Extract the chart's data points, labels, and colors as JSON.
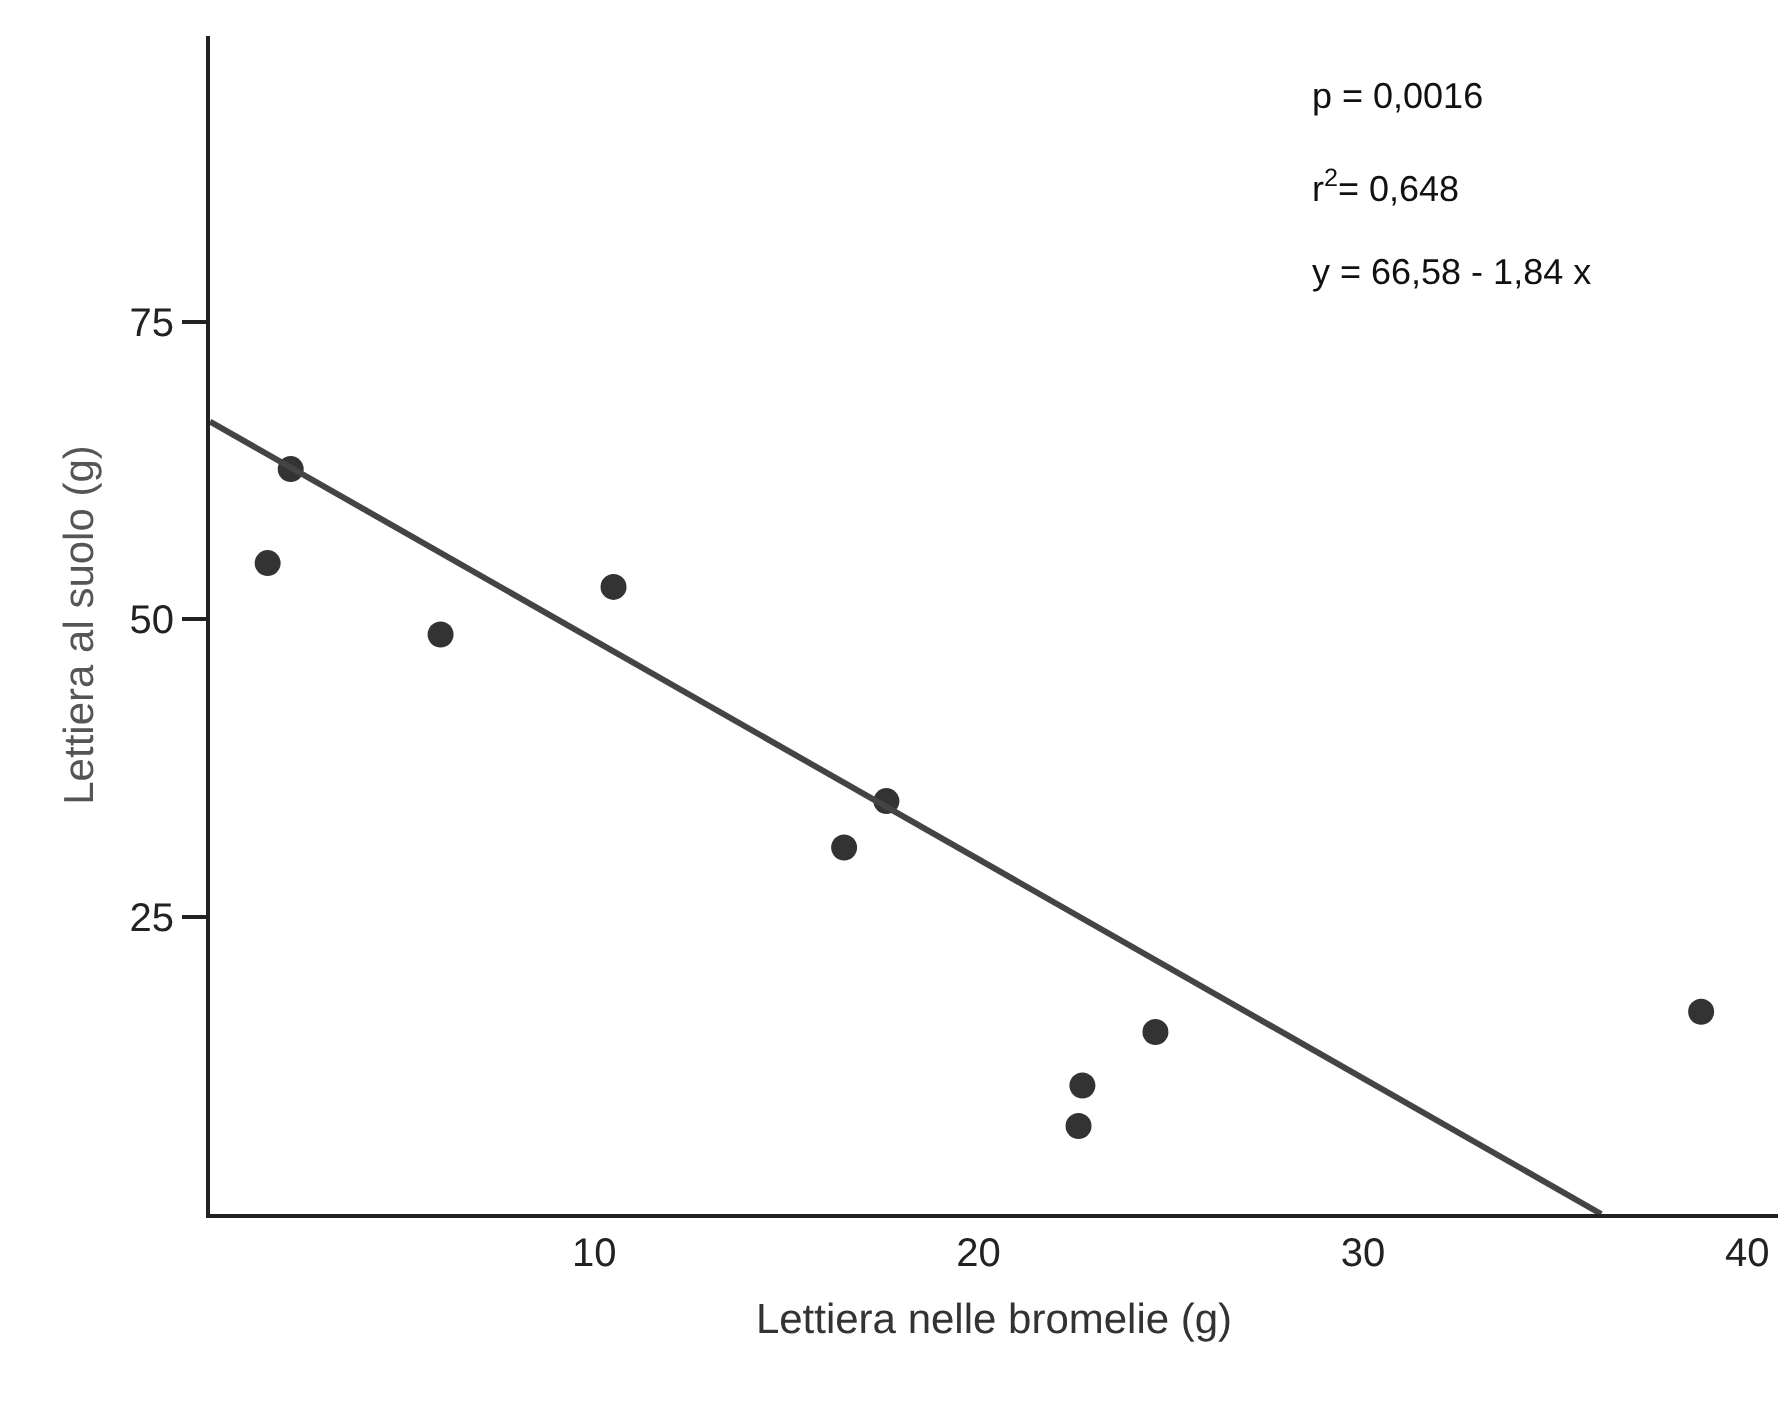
{
  "chart_data": {
    "type": "scatter",
    "xlabel": "Lettiera nelle bromelie (g)",
    "ylabel": "Lettiera al suolo (g)",
    "xlim": [
      0,
      40.8
    ],
    "xticks": [
      10,
      20,
      30,
      40
    ],
    "ylim": [
      0,
      99
    ],
    "yticks": [
      25,
      50,
      75
    ],
    "grid": false,
    "marker": "circle",
    "series": [
      {
        "type": "scatter",
        "color": "#333333",
        "x": [
          1.5,
          2.1,
          6.0,
          10.5,
          16.5,
          17.6,
          22.7,
          22.6,
          24.6,
          38.8
        ],
        "values": [
          54.7,
          62.6,
          48.7,
          52.7,
          30.8,
          34.7,
          10.8,
          7.4,
          15.3,
          17.0
        ]
      },
      {
        "type": "line",
        "color": "#444444",
        "marker": "none",
        "line_style": "solid",
        "x": [
          0,
          36.2
        ],
        "values": [
          66.6,
          0
        ]
      }
    ],
    "annotations": [
      "p = 0,0016",
      "r$^{2}$= 0,648",
      "y = 66,58 - 1,84 x"
    ]
  }
}
